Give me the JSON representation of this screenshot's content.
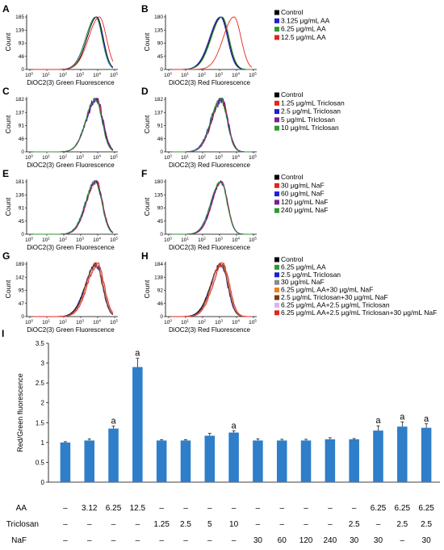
{
  "panels": [
    {
      "label": "A",
      "yticks": [
        "0",
        "46",
        "93",
        "139",
        "185"
      ],
      "ylabel": "Count",
      "xlabel": "DiOC2(3) Green Fluorescence",
      "curves": [
        {
          "color": "#000000",
          "peak": 3.95,
          "sigma": 0.5,
          "jitter": 0.0
        },
        {
          "color": "#1f1fd6",
          "peak": 3.9,
          "sigma": 0.52,
          "jitter": 0.0
        },
        {
          "color": "#2e9a2e",
          "peak": 3.88,
          "sigma": 0.5,
          "jitter": 0.0
        },
        {
          "color": "#e8231d",
          "peak": 4.1,
          "sigma": 0.55,
          "jitter": 0.0
        }
      ]
    },
    {
      "label": "B",
      "yticks": [
        "0",
        "45",
        "90",
        "135",
        "180"
      ],
      "ylabel": "Count",
      "xlabel": "DiOC2(3) Red Fluorescence",
      "curves": [
        {
          "color": "#000000",
          "peak": 3.1,
          "sigma": 0.55,
          "jitter": 0.0
        },
        {
          "color": "#1f1fd6",
          "peak": 3.05,
          "sigma": 0.55,
          "jitter": 0.0
        },
        {
          "color": "#2e9a2e",
          "peak": 3.15,
          "sigma": 0.55,
          "jitter": 0.0
        },
        {
          "color": "#e8231d",
          "peak": 3.85,
          "sigma": 0.55,
          "jitter": 0.0
        }
      ]
    },
    {
      "label": "C",
      "yticks": [
        "0",
        "46",
        "91",
        "137",
        "182"
      ],
      "ylabel": "Count",
      "xlabel": "DiOC2(3) Green Fluorescence",
      "curves": [
        {
          "color": "#000000",
          "peak": 3.9,
          "sigma": 0.5,
          "jitter": 0.0
        },
        {
          "color": "#e8231d",
          "peak": 3.92,
          "sigma": 0.52,
          "jitter": 0.12
        },
        {
          "color": "#1f1fd6",
          "peak": 3.88,
          "sigma": 0.5,
          "jitter": 0.18
        },
        {
          "color": "#7a1f8f",
          "peak": 3.93,
          "sigma": 0.52,
          "jitter": 0.15
        },
        {
          "color": "#2e9a2e",
          "peak": 3.87,
          "sigma": 0.5,
          "jitter": 0.1
        }
      ]
    },
    {
      "label": "D",
      "yticks": [
        "0",
        "46",
        "91",
        "137",
        "182"
      ],
      "ylabel": "Count",
      "xlabel": "DiOC2(3) Red Fluorescence",
      "curves": [
        {
          "color": "#000000",
          "peak": 3.1,
          "sigma": 0.5,
          "jitter": 0.0
        },
        {
          "color": "#e8231d",
          "peak": 3.12,
          "sigma": 0.5,
          "jitter": 0.1
        },
        {
          "color": "#1f1fd6",
          "peak": 3.08,
          "sigma": 0.52,
          "jitter": 0.15
        },
        {
          "color": "#7a1f8f",
          "peak": 3.12,
          "sigma": 0.5,
          "jitter": 0.2
        },
        {
          "color": "#2e9a2e",
          "peak": 3.06,
          "sigma": 0.5,
          "jitter": 0.1
        }
      ]
    },
    {
      "label": "E",
      "yticks": [
        "0",
        "45",
        "91",
        "136",
        "181"
      ],
      "ylabel": "Count",
      "xlabel": "DiOC2(3) Green Fluorescence",
      "curves": [
        {
          "color": "#000000",
          "peak": 3.9,
          "sigma": 0.5,
          "jitter": 0.0
        },
        {
          "color": "#e8231d",
          "peak": 3.92,
          "sigma": 0.5,
          "jitter": 0.1
        },
        {
          "color": "#1f1fd6",
          "peak": 3.88,
          "sigma": 0.52,
          "jitter": 0.12
        },
        {
          "color": "#7a1f8f",
          "peak": 3.9,
          "sigma": 0.5,
          "jitter": 0.1
        },
        {
          "color": "#2e9a2e",
          "peak": 3.86,
          "sigma": 0.5,
          "jitter": 0.08
        }
      ]
    },
    {
      "label": "F",
      "yticks": [
        "0",
        "45",
        "90",
        "135",
        "180"
      ],
      "ylabel": "Count",
      "xlabel": "DiOC2(3) Red Fluorescence",
      "curves": [
        {
          "color": "#000000",
          "peak": 3.1,
          "sigma": 0.48,
          "jitter": 0.0
        },
        {
          "color": "#e8231d",
          "peak": 3.12,
          "sigma": 0.48,
          "jitter": 0.06
        },
        {
          "color": "#1f1fd6",
          "peak": 3.08,
          "sigma": 0.5,
          "jitter": 0.08
        },
        {
          "color": "#7a1f8f",
          "peak": 3.1,
          "sigma": 0.48,
          "jitter": 0.06
        },
        {
          "color": "#2e9a2e",
          "peak": 3.06,
          "sigma": 0.5,
          "jitter": 0.05
        }
      ]
    },
    {
      "label": "G",
      "yticks": [
        "0",
        "47",
        "95",
        "142",
        "189"
      ],
      "ylabel": "Count",
      "xlabel": "DiOC2(3) Green Fluorescence",
      "curves": [
        {
          "color": "#000000",
          "peak": 3.9,
          "sigma": 0.55,
          "jitter": 0.05
        },
        {
          "color": "#2e9a2e",
          "peak": 3.92,
          "sigma": 0.52,
          "jitter": 0.1
        },
        {
          "color": "#1f1fd6",
          "peak": 3.88,
          "sigma": 0.52,
          "jitter": 0.12
        },
        {
          "color": "#8a8a8a",
          "peak": 3.95,
          "sigma": 0.52,
          "jitter": 0.1
        },
        {
          "color": "#ef7d1a",
          "peak": 3.93,
          "sigma": 0.52,
          "jitter": 0.1
        },
        {
          "color": "#7a3b12",
          "peak": 3.9,
          "sigma": 0.52,
          "jitter": 0.12
        },
        {
          "color": "#d8b7e8",
          "peak": 3.98,
          "sigma": 0.52,
          "jitter": 0.1
        },
        {
          "color": "#e8231d",
          "peak": 4.0,
          "sigma": 0.52,
          "jitter": 0.12
        }
      ]
    },
    {
      "label": "H",
      "yticks": [
        "0",
        "46",
        "92",
        "138",
        "184"
      ],
      "ylabel": "Count",
      "xlabel": "DiOC2(3) Red Fluorescence",
      "curves": [
        {
          "color": "#000000",
          "peak": 3.1,
          "sigma": 0.55,
          "jitter": 0.05
        },
        {
          "color": "#2e9a2e",
          "peak": 3.12,
          "sigma": 0.52,
          "jitter": 0.1
        },
        {
          "color": "#1f1fd6",
          "peak": 3.08,
          "sigma": 0.52,
          "jitter": 0.12
        },
        {
          "color": "#8a8a8a",
          "peak": 3.15,
          "sigma": 0.52,
          "jitter": 0.1
        },
        {
          "color": "#ef7d1a",
          "peak": 3.13,
          "sigma": 0.52,
          "jitter": 0.1
        },
        {
          "color": "#7a3b12",
          "peak": 3.1,
          "sigma": 0.52,
          "jitter": 0.12
        },
        {
          "color": "#d8b7e8",
          "peak": 3.18,
          "sigma": 0.52,
          "jitter": 0.1
        },
        {
          "color": "#e8231d",
          "peak": 3.2,
          "sigma": 0.52,
          "jitter": 0.12
        }
      ]
    }
  ],
  "x_tick_base": "10",
  "x_tick_exponents": [
    "0",
    "1",
    "2",
    "3",
    "4",
    "5"
  ],
  "legends": [
    {
      "items": [
        {
          "label": "Control",
          "color": "#000000"
        },
        {
          "label": "3.125 μg/mL AA",
          "color": "#1f1fd6"
        },
        {
          "label": "6.25 μg/mL AA",
          "color": "#2e9a2e"
        },
        {
          "label": "12.5 μg/mL AA",
          "color": "#e8231d"
        }
      ]
    },
    {
      "items": [
        {
          "label": "Control",
          "color": "#000000"
        },
        {
          "label": "1.25 μg/mL Triclosan",
          "color": "#e8231d"
        },
        {
          "label": "2.5 μg/mL Triclosan",
          "color": "#1f1fd6"
        },
        {
          "label": "5 μg/mL Triclosan",
          "color": "#7a1f8f"
        },
        {
          "label": "10 μg/mL Triclosan",
          "color": "#2e9a2e"
        }
      ]
    },
    {
      "items": [
        {
          "label": "Control",
          "color": "#000000"
        },
        {
          "label": "30 μg/mL NaF",
          "color": "#e8231d"
        },
        {
          "label": "60 μg/mL NaF",
          "color": "#1f1fd6"
        },
        {
          "label": "120 μg/mL NaF",
          "color": "#7a1f8f"
        },
        {
          "label": "240 μg/mL NaF",
          "color": "#2e9a2e"
        }
      ]
    },
    {
      "items": [
        {
          "label": "Control",
          "color": "#000000"
        },
        {
          "label": "6.25 μg/mL AA",
          "color": "#2e9a2e"
        },
        {
          "label": "2.5 μg/mL Triclosan",
          "color": "#1f1fd6"
        },
        {
          "label": "30 μg/mL NaF",
          "color": "#8a8a8a"
        },
        {
          "label": "6.25 μg/mL AA+30 μg/mL NaF",
          "color": "#ef7d1a"
        },
        {
          "label": "2.5 μg/mL Triclosan+30 μg/mL NaF",
          "color": "#7a3b12"
        },
        {
          "label": "6.25 μg/mL AA+2.5 μg/mL Triclosan",
          "color": "#d8b7e8"
        },
        {
          "label": "6.25 μg/mL AA+2.5 μg/mL Triclosan+30 μg/mL NaF",
          "color": "#e8231d"
        }
      ]
    }
  ],
  "chart_data": {
    "type": "bar",
    "panel_label": "I",
    "title": "",
    "ylabel": "Red/Green fluorescence",
    "xlabel": "",
    "ylim": [
      0,
      3.5
    ],
    "yticks": [
      0,
      0.5,
      1,
      1.5,
      2,
      2.5,
      3,
      3.5
    ],
    "ytick_labels": [
      "0",
      "0.5",
      "1",
      "1.5",
      "2",
      "2.5",
      "3",
      "3.5"
    ],
    "bar_color": "#2e7ec9",
    "values": [
      1.0,
      1.05,
      1.35,
      2.9,
      1.05,
      1.05,
      1.17,
      1.25,
      1.05,
      1.05,
      1.05,
      1.08,
      1.08,
      1.3,
      1.4,
      1.37
    ],
    "errors": [
      0.02,
      0.04,
      0.06,
      0.22,
      0.02,
      0.02,
      0.06,
      0.04,
      0.04,
      0.03,
      0.03,
      0.04,
      0.02,
      0.12,
      0.12,
      0.1
    ],
    "significance": [
      "",
      "",
      "a",
      "a",
      "",
      "",
      "",
      "a",
      "",
      "",
      "",
      "",
      "",
      "a",
      "a",
      "a"
    ],
    "treatment_rows": [
      {
        "name": "AA",
        "values": [
          "–",
          "3.12",
          "6.25",
          "12.5",
          "–",
          "–",
          "–",
          "–",
          "–",
          "–",
          "–",
          "–",
          "–",
          "6.25",
          "6.25",
          "6.25"
        ]
      },
      {
        "name": "Triclosan",
        "values": [
          "–",
          "–",
          "–",
          "–",
          "1.25",
          "2.5",
          "5",
          "10",
          "–",
          "–",
          "–",
          "–",
          "2.5",
          "–",
          "2.5",
          "2.5"
        ]
      },
      {
        "name": "NaF",
        "values": [
          "–",
          "–",
          "–",
          "–",
          "–",
          "–",
          "–",
          "–",
          "30",
          "60",
          "120",
          "240",
          "30",
          "30",
          "–",
          "30"
        ]
      }
    ]
  }
}
